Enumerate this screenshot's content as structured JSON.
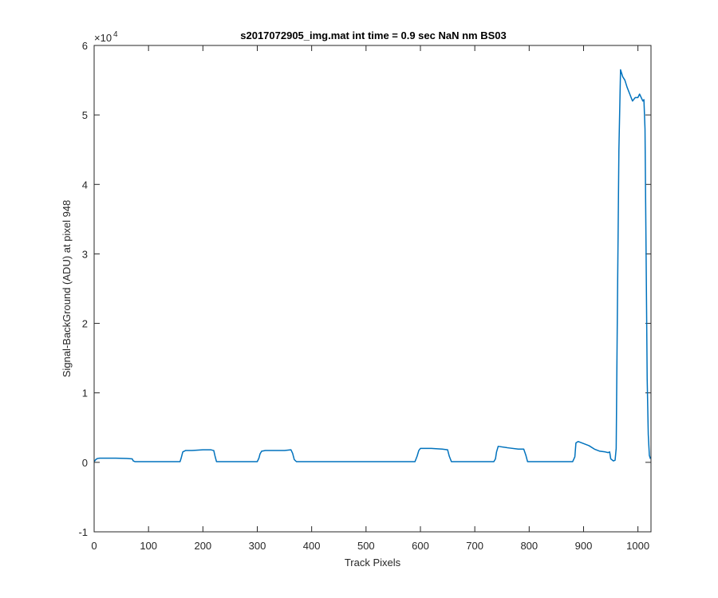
{
  "chart_data": {
    "type": "line",
    "title": "s2017072905_img.mat int time = 0.9 sec  NaN nm BS03",
    "xlabel": "Track Pixels",
    "ylabel": "Signal-BackGround (ADU) at pixel 948",
    "xlim": [
      0,
      1024
    ],
    "ylim": [
      -10000,
      60000
    ],
    "x_ticks": [
      0,
      100,
      200,
      300,
      400,
      500,
      600,
      700,
      800,
      900,
      1000
    ],
    "x_tick_labels": [
      "0",
      "100",
      "200",
      "300",
      "400",
      "500",
      "600",
      "700",
      "800",
      "900",
      "1000"
    ],
    "y_ticks": [
      -10000,
      0,
      10000,
      20000,
      30000,
      40000,
      50000,
      60000
    ],
    "y_tick_labels": [
      "-1",
      "0",
      "1",
      "2",
      "3",
      "4",
      "5",
      "6"
    ],
    "y_exponent_label": "×10",
    "y_exponent_power": "4",
    "grid": false,
    "line_color": "#0072BD",
    "series": [
      {
        "x": [
          0,
          3,
          6,
          10,
          20,
          40,
          60,
          70,
          72,
          75,
          80,
          100,
          140,
          158,
          160,
          163,
          168,
          180,
          200,
          215,
          220,
          222,
          225,
          240,
          280,
          300,
          303,
          305,
          308,
          315,
          330,
          350,
          362,
          365,
          368,
          372,
          400,
          450,
          500,
          560,
          590,
          594,
          597,
          600,
          620,
          640,
          650,
          653,
          657,
          700,
          735,
          738,
          740,
          743,
          760,
          780,
          790,
          794,
          797,
          800,
          850,
          880,
          884,
          886,
          890,
          900,
          910,
          920,
          930,
          940,
          945,
          948,
          950,
          955,
          958,
          960,
          962,
          965,
          968,
          972,
          976,
          980,
          985,
          990,
          995,
          1000,
          1003,
          1006,
          1009,
          1011,
          1013,
          1015,
          1017,
          1019,
          1021,
          1023
        ],
        "y": [
          100,
          400,
          550,
          600,
          600,
          600,
          550,
          500,
          200,
          100,
          100,
          100,
          100,
          100,
          600,
          1500,
          1700,
          1700,
          1800,
          1800,
          1700,
          1000,
          100,
          100,
          100,
          100,
          600,
          1200,
          1600,
          1700,
          1700,
          1700,
          1800,
          1300,
          400,
          100,
          100,
          100,
          100,
          100,
          100,
          900,
          1700,
          2000,
          2000,
          1900,
          1800,
          900,
          100,
          100,
          100,
          500,
          1500,
          2300,
          2100,
          1900,
          1900,
          1000,
          100,
          100,
          100,
          100,
          800,
          2800,
          3000,
          2700,
          2400,
          1900,
          1600,
          1500,
          1400,
          1500,
          500,
          200,
          300,
          2000,
          20000,
          45000,
          56500,
          55500,
          55000,
          54000,
          53000,
          52000,
          52500,
          52500,
          53000,
          52500,
          52000,
          52200,
          48000,
          30000,
          12000,
          4000,
          1000,
          500
        ]
      }
    ]
  }
}
